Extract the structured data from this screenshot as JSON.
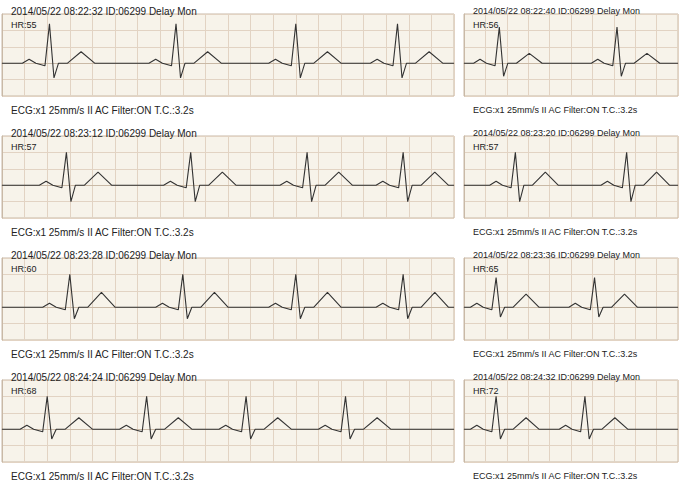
{
  "chart_data": [
    {
      "type": "line",
      "title": "2014/05/22 08:22:32 ID:06299 Delay Mon",
      "subtitle": "HR:55",
      "annotations": [
        "ECG:x1 25mm/s II AC Filter:ON T.C.:3.2s"
      ],
      "x": [
        0,
        0.18,
        0.24,
        0.3,
        0.38,
        0.42,
        0.46,
        0.5,
        0.58,
        0.7,
        0.82,
        1.3,
        1.36,
        1.42,
        1.5,
        1.54,
        1.58,
        1.62,
        1.7,
        1.82,
        1.94,
        2.36,
        2.42,
        2.48,
        2.56,
        2.6,
        2.64,
        2.68,
        2.76,
        2.88,
        3.0,
        3.26,
        3.32,
        3.38,
        3.46,
        3.5,
        3.54,
        3.58,
        3.66,
        3.78,
        3.9,
        4
      ],
      "values": [
        0,
        0,
        0.12,
        0,
        -0.08,
        1.2,
        -0.45,
        0,
        0,
        0.35,
        0,
        0,
        0.12,
        0,
        -0.08,
        1.2,
        -0.45,
        0,
        0,
        0.35,
        0,
        0,
        0.12,
        0,
        -0.08,
        1.2,
        -0.45,
        0,
        0,
        0.35,
        0,
        0,
        0.12,
        0,
        -0.08,
        1.2,
        -0.45,
        0,
        0,
        0.35,
        0,
        0
      ],
      "xlim": [
        0,
        4
      ],
      "xticks": [
        0,
        0.2,
        0.4,
        0.6,
        0.8,
        1,
        1.2,
        1.4,
        1.6,
        1.8,
        2,
        2.2,
        2.4,
        2.6,
        2.8,
        3,
        3.2,
        3.4,
        3.6,
        3.8,
        4
      ],
      "ylim": [
        -1,
        1.5
      ],
      "yticks": [
        -1,
        -0.5,
        0,
        0.5,
        1,
        1.5
      ],
      "grid": true,
      "tick_labels": false,
      "color": "#333333"
    },
    {
      "type": "line",
      "title": "2014/05/22 08:22:40 ID:06299 Delay Mon",
      "subtitle": "HR:56",
      "annotations": [
        "ECG:x1 25mm/s II AC Filter:ON T.C.:3.2s"
      ],
      "x": [
        0,
        0.09,
        0.15,
        0.21,
        0.29,
        0.33,
        0.37,
        0.41,
        0.49,
        0.61,
        0.73,
        1.19,
        1.25,
        1.31,
        1.39,
        1.43,
        1.47,
        1.51,
        1.59,
        1.71,
        1.83,
        2
      ],
      "values": [
        0,
        0,
        0.12,
        0,
        -0.08,
        1.1,
        -0.4,
        0,
        0,
        0.3,
        0,
        0,
        0.12,
        0,
        -0.08,
        1.1,
        -0.4,
        0,
        0,
        0.3,
        0,
        0
      ],
      "xlim": [
        0,
        2
      ],
      "xticks": [
        0,
        0.2,
        0.4,
        0.6,
        0.8,
        1,
        1.2,
        1.4,
        1.6,
        1.8,
        2
      ],
      "ylim": [
        -1,
        1.5
      ],
      "yticks": [
        -1,
        -0.5,
        0,
        0.5,
        1,
        1.5
      ],
      "grid": true,
      "tick_labels": false,
      "color": "#333333"
    },
    {
      "type": "line",
      "title": "2014/05/22 08:23:12 ID:06299 Delay Mon",
      "subtitle": "HR:57",
      "annotations": [
        "ECG:x1 25mm/s II AC Filter:ON T.C.:3.2s"
      ],
      "x": [
        0,
        0.33,
        0.39,
        0.45,
        0.53,
        0.57,
        0.61,
        0.65,
        0.73,
        0.85,
        0.97,
        1.43,
        1.49,
        1.55,
        1.63,
        1.67,
        1.71,
        1.75,
        1.83,
        1.95,
        2.07,
        2.46,
        2.52,
        2.58,
        2.66,
        2.7,
        2.74,
        2.78,
        2.86,
        2.98,
        3.1,
        3.31,
        3.37,
        3.43,
        3.51,
        3.55,
        3.59,
        3.63,
        3.71,
        3.83,
        3.95,
        4
      ],
      "values": [
        0,
        0,
        0.12,
        0,
        -0.08,
        1.0,
        -0.5,
        0,
        0,
        0.4,
        0,
        0,
        0.12,
        0,
        -0.08,
        1.0,
        -0.5,
        0,
        0,
        0.4,
        0,
        0,
        0.12,
        0,
        -0.08,
        1.0,
        -0.5,
        0,
        0,
        0.4,
        0,
        0,
        0.12,
        0,
        -0.08,
        1.0,
        -0.5,
        0,
        0,
        0.4,
        0,
        0
      ],
      "xlim": [
        0,
        4
      ],
      "xticks": [
        0,
        0.2,
        0.4,
        0.6,
        0.8,
        1,
        1.2,
        1.4,
        1.6,
        1.8,
        2,
        2.2,
        2.4,
        2.6,
        2.8,
        3,
        3.2,
        3.4,
        3.6,
        3.8,
        4
      ],
      "ylim": [
        -1,
        1.5
      ],
      "yticks": [
        -1,
        -0.5,
        0,
        0.5,
        1,
        1.5
      ],
      "grid": true,
      "tick_labels": false,
      "color": "#333333"
    },
    {
      "type": "line",
      "title": "2014/05/22 08:23:20 ID:06299 Delay Mon",
      "subtitle": "HR:57",
      "annotations": [
        "ECG:x1 25mm/s II AC Filter:ON T.C.:3.2s"
      ],
      "x": [
        0,
        0.24,
        0.3,
        0.36,
        0.44,
        0.48,
        0.52,
        0.56,
        0.64,
        0.76,
        0.88,
        1.28,
        1.34,
        1.4,
        1.48,
        1.52,
        1.56,
        1.6,
        1.68,
        1.8,
        1.92,
        2
      ],
      "values": [
        0,
        0,
        0.12,
        0,
        -0.08,
        1.0,
        -0.5,
        0,
        0,
        0.4,
        0,
        0,
        0.12,
        0,
        -0.08,
        1.0,
        -0.5,
        0,
        0,
        0.4,
        0,
        0
      ],
      "xlim": [
        0,
        2
      ],
      "xticks": [
        0,
        0.2,
        0.4,
        0.6,
        0.8,
        1,
        1.2,
        1.4,
        1.6,
        1.8,
        2
      ],
      "ylim": [
        -1,
        1.5
      ],
      "yticks": [
        -1,
        -0.5,
        0,
        0.5,
        1,
        1.5
      ],
      "grid": true,
      "tick_labels": false,
      "color": "#333333"
    },
    {
      "type": "line",
      "title": "2014/05/22 08:23:28 ID:06299 Delay Mon",
      "subtitle": "HR:60",
      "annotations": [
        "ECG:x1 25mm/s II AC Filter:ON T.C.:3.2s"
      ],
      "x": [
        0,
        0.36,
        0.42,
        0.48,
        0.56,
        0.6,
        0.64,
        0.68,
        0.76,
        0.88,
        1.0,
        1.36,
        1.42,
        1.48,
        1.56,
        1.6,
        1.64,
        1.68,
        1.76,
        1.88,
        2.0,
        2.36,
        2.42,
        2.48,
        2.56,
        2.6,
        2.64,
        2.68,
        2.76,
        2.88,
        3.0,
        3.31,
        3.37,
        3.43,
        3.51,
        3.55,
        3.59,
        3.63,
        3.71,
        3.83,
        3.95,
        4
      ],
      "values": [
        0,
        0,
        0.12,
        0,
        -0.08,
        1.0,
        -0.35,
        0,
        0,
        0.45,
        0,
        0,
        0.12,
        0,
        -0.08,
        1.0,
        -0.35,
        0,
        0,
        0.45,
        0,
        0,
        0.12,
        0,
        -0.08,
        1.0,
        -0.35,
        0,
        0,
        0.45,
        0,
        0,
        0.12,
        0,
        -0.08,
        1.0,
        -0.35,
        0,
        0,
        0.45,
        0,
        0
      ],
      "xlim": [
        0,
        4
      ],
      "xticks": [
        0,
        0.2,
        0.4,
        0.6,
        0.8,
        1,
        1.2,
        1.4,
        1.6,
        1.8,
        2,
        2.2,
        2.4,
        2.6,
        2.8,
        3,
        3.2,
        3.4,
        3.6,
        3.8,
        4
      ],
      "ylim": [
        -1,
        1.5
      ],
      "yticks": [
        -1,
        -0.5,
        0,
        0.5,
        1,
        1.5
      ],
      "grid": true,
      "tick_labels": false,
      "color": "#333333"
    },
    {
      "type": "line",
      "title": "2014/05/22 08:23:36 ID:06299 Delay Mon",
      "subtitle": "HR:65",
      "annotations": [
        "ECG:x1 25mm/s II AC Filter:ON T.C.:3.2s"
      ],
      "x": [
        0,
        0.06,
        0.12,
        0.18,
        0.26,
        0.3,
        0.34,
        0.38,
        0.46,
        0.58,
        0.7,
        0.98,
        1.04,
        1.1,
        1.18,
        1.22,
        1.26,
        1.3,
        1.38,
        1.5,
        1.62,
        2
      ],
      "values": [
        0,
        0,
        0.12,
        0,
        -0.08,
        0.9,
        -0.3,
        0,
        0,
        0.4,
        0,
        0,
        0.12,
        0,
        -0.08,
        0.9,
        -0.3,
        0,
        0,
        0.4,
        0,
        0
      ],
      "xlim": [
        0,
        2
      ],
      "xticks": [
        0,
        0.2,
        0.4,
        0.6,
        0.8,
        1,
        1.2,
        1.4,
        1.6,
        1.8,
        2
      ],
      "ylim": [
        -1,
        1.5
      ],
      "yticks": [
        -1,
        -0.5,
        0,
        0.5,
        1,
        1.5
      ],
      "grid": true,
      "tick_labels": false,
      "color": "#333333"
    },
    {
      "type": "line",
      "title": "2014/05/22 08:24:24 ID:06299 Delay Mon",
      "subtitle": "HR:68",
      "annotations": [
        "ECG:x1 25mm/s II AC Filter:ON T.C.:3.2s"
      ],
      "x": [
        0,
        0.16,
        0.22,
        0.28,
        0.36,
        0.4,
        0.44,
        0.48,
        0.56,
        0.68,
        0.8,
        1.04,
        1.1,
        1.16,
        1.24,
        1.28,
        1.32,
        1.36,
        1.44,
        1.56,
        1.68,
        1.92,
        1.98,
        2.04,
        2.12,
        2.16,
        2.2,
        2.24,
        2.32,
        2.44,
        2.56,
        2.8,
        2.86,
        2.92,
        3.0,
        3.04,
        3.08,
        3.12,
        3.2,
        3.32,
        3.44,
        4
      ],
      "values": [
        0,
        0,
        0.12,
        0,
        -0.08,
        1.0,
        -0.3,
        0,
        0,
        0.35,
        0,
        0,
        0.12,
        0,
        -0.08,
        1.0,
        -0.3,
        0,
        0,
        0.35,
        0,
        0,
        0.12,
        0,
        -0.08,
        1.0,
        -0.3,
        0,
        0,
        0.35,
        0,
        0,
        0.12,
        0,
        -0.08,
        1.0,
        -0.3,
        0,
        0,
        0.35,
        0,
        0
      ],
      "xlim": [
        0,
        4
      ],
      "xticks": [
        0,
        0.2,
        0.4,
        0.6,
        0.8,
        1,
        1.2,
        1.4,
        1.6,
        1.8,
        2,
        2.2,
        2.4,
        2.6,
        2.8,
        3,
        3.2,
        3.4,
        3.6,
        3.8,
        4
      ],
      "ylim": [
        -1,
        1.5
      ],
      "yticks": [
        -1,
        -0.5,
        0,
        0.5,
        1,
        1.5
      ],
      "grid": true,
      "tick_labels": false,
      "color": "#333333"
    },
    {
      "type": "line",
      "title": "2014/05/22 08:24:32 ID:06299 Delay Mon",
      "subtitle": "HR:72",
      "annotations": [
        "ECG:x1 25mm/s II AC Filter:ON T.C.:3.2s"
      ],
      "x": [
        0,
        0.06,
        0.12,
        0.18,
        0.26,
        0.3,
        0.34,
        0.38,
        0.46,
        0.58,
        0.7,
        0.89,
        0.95,
        1.01,
        1.09,
        1.13,
        1.17,
        1.21,
        1.29,
        1.41,
        1.53,
        2
      ],
      "values": [
        0,
        0,
        0.12,
        0,
        -0.08,
        1.0,
        -0.3,
        0,
        0,
        0.35,
        0,
        0,
        0.12,
        0,
        -0.08,
        1.0,
        -0.3,
        0,
        0,
        0.35,
        0,
        0
      ],
      "xlim": [
        0,
        2
      ],
      "xticks": [
        0,
        0.2,
        0.4,
        0.6,
        0.8,
        1,
        1.2,
        1.4,
        1.6,
        1.8,
        2
      ],
      "ylim": [
        -1,
        1.5
      ],
      "yticks": [
        -1,
        -0.5,
        0,
        0.5,
        1,
        1.5
      ],
      "grid": true,
      "tick_labels": false,
      "color": "#333333"
    }
  ]
}
